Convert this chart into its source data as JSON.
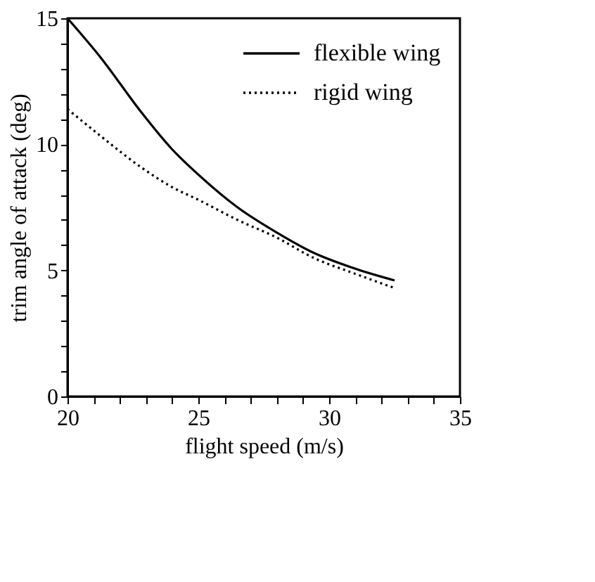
{
  "chart_data": {
    "type": "line",
    "xlabel": "flight speed (m/s)",
    "ylabel": "trim angle of attack (deg)",
    "x": [
      20,
      21.3,
      22.8,
      24,
      25,
      26.5,
      28,
      29.4,
      30.9,
      32.5
    ],
    "series": [
      {
        "name": "flexible wing",
        "color": "#000000",
        "line_style": "solid",
        "values": [
          15,
          13.4,
          11.3,
          9.8,
          8.8,
          7.5,
          6.5,
          5.7,
          5.1,
          4.6
        ]
      },
      {
        "name": "rigid wing",
        "color": "#000000",
        "line_style": "dotted",
        "values": [
          11.4,
          10.3,
          9.1,
          8.3,
          7.8,
          7.0,
          6.3,
          5.5,
          4.9,
          4.3
        ]
      }
    ],
    "xlim": [
      20,
      35
    ],
    "ylim": [
      0,
      15
    ],
    "xticks": [
      20,
      {
        "value": 21,
        "label": null
      },
      {
        "value": 22,
        "label": null
      },
      {
        "value": 23,
        "label": null
      },
      {
        "value": 24,
        "label": null
      },
      25,
      {
        "value": 26,
        "label": null
      },
      {
        "value": 27,
        "label": null
      },
      {
        "value": 28,
        "label": null
      },
      {
        "value": 29,
        "label": null
      },
      30,
      {
        "value": 31,
        "label": null
      },
      {
        "value": 32,
        "label": null
      },
      {
        "value": 33,
        "label": null
      },
      {
        "value": 34,
        "label": null
      },
      35
    ],
    "yticks": [
      0,
      {
        "value": 1,
        "label": null
      },
      {
        "value": 2,
        "label": null
      },
      {
        "value": 3,
        "label": null
      },
      {
        "value": 4,
        "label": null
      },
      5,
      {
        "value": 6,
        "label": null
      },
      {
        "value": 7,
        "label": null
      },
      {
        "value": 8,
        "label": null
      },
      {
        "value": 9,
        "label": null
      },
      10,
      {
        "value": 11,
        "label": null
      },
      {
        "value": 12,
        "label": null
      },
      {
        "value": 13,
        "label": null
      },
      {
        "value": 14,
        "label": null
      },
      15
    ],
    "grid": false,
    "legend": "top right"
  }
}
